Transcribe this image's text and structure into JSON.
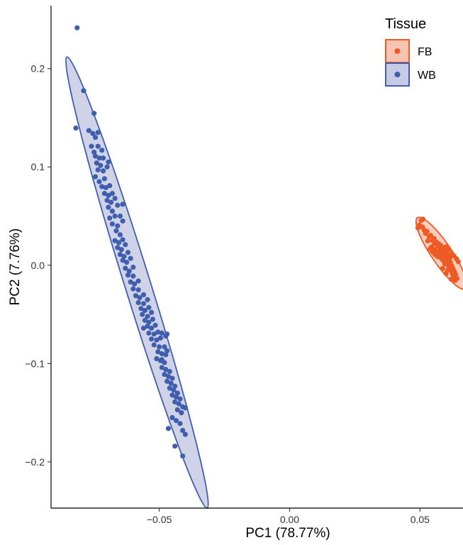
{
  "chart_data": {
    "type": "scatter",
    "xlabel": "PC1 (78.77%)",
    "ylabel": "PC2 (7.76%)",
    "xlim": [
      -0.0915,
      0.0665
    ],
    "ylim": [
      -0.247,
      0.264
    ],
    "x_ticks": [
      -0.05,
      0.0,
      0.05
    ],
    "x_tick_labels": [
      "−0.05",
      "0.00",
      "0.05"
    ],
    "y_ticks": [
      -0.2,
      -0.1,
      0.0,
      0.1,
      0.2
    ],
    "y_tick_labels": [
      "−0.2",
      "−0.1",
      "0.0",
      "0.1",
      "0.2"
    ],
    "grid": false,
    "confidence_ellipses": true,
    "legend": {
      "title": "Tissue",
      "placement": "top-right"
    },
    "series": [
      {
        "name": "FB",
        "color": "#EE5A24",
        "ellipse_fill": "#F6C4B1",
        "points": [
          [
            0.0505,
            0.0456
          ],
          [
            0.0511,
            0.0469
          ],
          [
            0.0498,
            0.0408
          ],
          [
            0.0492,
            0.0379
          ],
          [
            0.0517,
            0.0356
          ],
          [
            0.0527,
            0.0344
          ],
          [
            0.0521,
            0.0325
          ],
          [
            0.0541,
            0.0303
          ],
          [
            0.0535,
            0.0293
          ],
          [
            0.0554,
            0.0273
          ],
          [
            0.0548,
            0.0253
          ],
          [
            0.0562,
            0.0238
          ],
          [
            0.0556,
            0.0223
          ],
          [
            0.0573,
            0.0216
          ],
          [
            0.0568,
            0.0196
          ],
          [
            0.058,
            0.0198
          ],
          [
            0.0586,
            0.0176
          ],
          [
            0.0576,
            0.0156
          ],
          [
            0.0593,
            0.0158
          ],
          [
            0.0599,
            0.0138
          ],
          [
            0.0588,
            0.0128
          ],
          [
            0.0603,
            0.0118
          ],
          [
            0.0595,
            0.0098
          ],
          [
            0.0608,
            0.0088
          ],
          [
            0.06,
            0.0068
          ],
          [
            0.0612,
            0.0058
          ],
          [
            0.0604,
            0.0038
          ],
          [
            0.0617,
            0.0028
          ],
          [
            0.0583,
            0.0066
          ],
          [
            0.059,
            0.0046
          ],
          [
            0.0569,
            0.0086
          ],
          [
            0.0577,
            0.0096
          ],
          [
            0.0558,
            0.0108
          ],
          [
            0.0565,
            0.0128
          ],
          [
            0.0548,
            0.0138
          ],
          [
            0.0556,
            0.0158
          ],
          [
            0.0539,
            0.0168
          ],
          [
            0.0546,
            0.0188
          ],
          [
            0.0595,
            0.0016
          ],
          [
            0.0609,
            -0.0004
          ],
          [
            0.0622,
            -0.0006
          ],
          [
            0.0614,
            -0.0024
          ],
          [
            0.0627,
            -0.0034
          ],
          [
            0.0619,
            -0.0054
          ],
          [
            0.0632,
            -0.0064
          ],
          [
            0.0624,
            -0.0084
          ],
          [
            0.0637,
            -0.0094
          ],
          [
            0.0629,
            -0.0114
          ],
          [
            0.0642,
            -0.0134
          ],
          [
            0.0635,
            -0.0154
          ],
          [
            0.062,
            -0.0142
          ],
          [
            0.06,
            -0.0084
          ],
          [
            0.0606,
            -0.0052
          ],
          [
            0.0587,
            -0.0032
          ],
          [
            0.063,
            0.0096
          ],
          [
            0.0622,
            0.0118
          ],
          [
            0.064,
            0.0066
          ],
          [
            0.0647,
            0.0036
          ],
          [
            0.061,
            0.0158
          ],
          [
            0.06,
            0.0188
          ],
          [
            0.053,
            0.0248
          ],
          [
            0.051,
            0.0388
          ],
          [
            0.0578,
            0.0126
          ],
          [
            0.0614,
            0.0076
          ],
          [
            0.0593,
            0.0106
          ]
        ]
      },
      {
        "name": "WB",
        "color": "#3F5FAE",
        "ellipse_fill": "#C8CBE4",
        "points": [
          [
            -0.0815,
            0.2415
          ],
          [
            -0.079,
            0.1775
          ],
          [
            -0.075,
            0.1545
          ],
          [
            -0.077,
            0.137
          ],
          [
            -0.082,
            0.1395
          ],
          [
            -0.0755,
            0.134
          ],
          [
            -0.0735,
            0.135
          ],
          [
            -0.0745,
            0.13
          ],
          [
            -0.076,
            0.121
          ],
          [
            -0.075,
            0.115
          ],
          [
            -0.0735,
            0.121
          ],
          [
            -0.072,
            0.117
          ],
          [
            -0.0745,
            0.111
          ],
          [
            -0.073,
            0.109
          ],
          [
            -0.0715,
            0.109
          ],
          [
            -0.074,
            0.104
          ],
          [
            -0.0725,
            0.1015
          ],
          [
            -0.0695,
            0.105
          ],
          [
            -0.07,
            0.1
          ],
          [
            -0.0735,
            0.097
          ],
          [
            -0.0715,
            0.096
          ],
          [
            -0.0745,
            0.09
          ],
          [
            -0.073,
            0.085
          ],
          [
            -0.071,
            0.088
          ],
          [
            -0.072,
            0.08
          ],
          [
            -0.0705,
            0.079
          ],
          [
            -0.069,
            0.081
          ],
          [
            -0.071,
            0.073
          ],
          [
            -0.0695,
            0.071
          ],
          [
            -0.068,
            0.073
          ],
          [
            -0.07,
            0.066
          ],
          [
            -0.0685,
            0.064
          ],
          [
            -0.067,
            0.068
          ],
          [
            -0.0695,
            0.059
          ],
          [
            -0.068,
            0.055
          ],
          [
            -0.066,
            0.061
          ],
          [
            -0.064,
            0.062
          ],
          [
            -0.069,
            0.048
          ],
          [
            -0.067,
            0.05
          ],
          [
            -0.065,
            0.05
          ],
          [
            -0.068,
            0.042
          ],
          [
            -0.066,
            0.04
          ],
          [
            -0.064,
            0.045
          ],
          [
            -0.0665,
            0.035
          ],
          [
            -0.065,
            0.031
          ],
          [
            -0.067,
            0.025
          ],
          [
            -0.0655,
            0.023
          ],
          [
            -0.064,
            0.026
          ],
          [
            -0.066,
            0.018
          ],
          [
            -0.0645,
            0.016
          ],
          [
            -0.063,
            0.021
          ],
          [
            -0.065,
            0.011
          ],
          [
            -0.0635,
            0.009
          ],
          [
            -0.062,
            0.013
          ],
          [
            -0.064,
            0.005
          ],
          [
            -0.0625,
            0.003
          ],
          [
            -0.061,
            0.007
          ],
          [
            -0.063,
            -0.003
          ],
          [
            -0.0615,
            -0.006
          ],
          [
            -0.06,
            -0.002
          ],
          [
            -0.062,
            -0.01
          ],
          [
            -0.06,
            -0.011
          ],
          [
            -0.061,
            -0.017
          ],
          [
            -0.0595,
            -0.019
          ],
          [
            -0.058,
            -0.016
          ],
          [
            -0.06,
            -0.024
          ],
          [
            -0.058,
            -0.025
          ],
          [
            -0.059,
            -0.031
          ],
          [
            -0.0575,
            -0.033
          ],
          [
            -0.056,
            -0.03
          ],
          [
            -0.058,
            -0.038
          ],
          [
            -0.056,
            -0.039
          ],
          [
            -0.0545,
            -0.035
          ],
          [
            -0.057,
            -0.044
          ],
          [
            -0.0555,
            -0.046
          ],
          [
            -0.054,
            -0.043
          ],
          [
            -0.0565,
            -0.05
          ],
          [
            -0.0545,
            -0.052
          ],
          [
            -0.053,
            -0.048
          ],
          [
            -0.0555,
            -0.056
          ],
          [
            -0.054,
            -0.058
          ],
          [
            -0.0525,
            -0.055
          ],
          [
            -0.0545,
            -0.062
          ],
          [
            -0.053,
            -0.064
          ],
          [
            -0.0515,
            -0.061
          ],
          [
            -0.054,
            -0.069
          ],
          [
            -0.052,
            -0.07
          ],
          [
            -0.0505,
            -0.068
          ],
          [
            -0.049,
            -0.069
          ],
          [
            -0.053,
            -0.075
          ],
          [
            -0.051,
            -0.076
          ],
          [
            -0.0495,
            -0.074
          ],
          [
            -0.052,
            -0.081
          ],
          [
            -0.05,
            -0.083
          ],
          [
            -0.048,
            -0.083
          ],
          [
            -0.047,
            -0.087
          ],
          [
            -0.0505,
            -0.088
          ],
          [
            -0.049,
            -0.09
          ],
          [
            -0.0475,
            -0.091
          ],
          [
            -0.051,
            -0.095
          ],
          [
            -0.0495,
            -0.097
          ],
          [
            -0.048,
            -0.099
          ],
          [
            -0.049,
            -0.104
          ],
          [
            -0.0475,
            -0.106
          ],
          [
            -0.046,
            -0.108
          ],
          [
            -0.048,
            -0.111
          ],
          [
            -0.0465,
            -0.113
          ],
          [
            -0.045,
            -0.115
          ],
          [
            -0.047,
            -0.118
          ],
          [
            -0.0455,
            -0.12
          ],
          [
            -0.044,
            -0.123
          ],
          [
            -0.046,
            -0.125
          ],
          [
            -0.0445,
            -0.127
          ],
          [
            -0.043,
            -0.13
          ],
          [
            -0.045,
            -0.132
          ],
          [
            -0.0435,
            -0.134
          ],
          [
            -0.042,
            -0.136
          ],
          [
            -0.044,
            -0.139
          ],
          [
            -0.0425,
            -0.141
          ],
          [
            -0.041,
            -0.144
          ],
          [
            -0.04,
            -0.145
          ],
          [
            -0.043,
            -0.147
          ],
          [
            -0.0415,
            -0.15
          ],
          [
            -0.045,
            -0.155
          ],
          [
            -0.0435,
            -0.158
          ],
          [
            -0.042,
            -0.161
          ],
          [
            -0.041,
            -0.168
          ],
          [
            -0.04,
            -0.172
          ],
          [
            -0.0475,
            -0.072
          ],
          [
            -0.047,
            -0.07
          ],
          [
            -0.049,
            -0.096
          ],
          [
            -0.044,
            -0.184
          ],
          [
            -0.041,
            -0.194
          ],
          [
            -0.0465,
            -0.166
          ],
          [
            -0.056,
            -0.064
          ]
        ]
      }
    ]
  }
}
